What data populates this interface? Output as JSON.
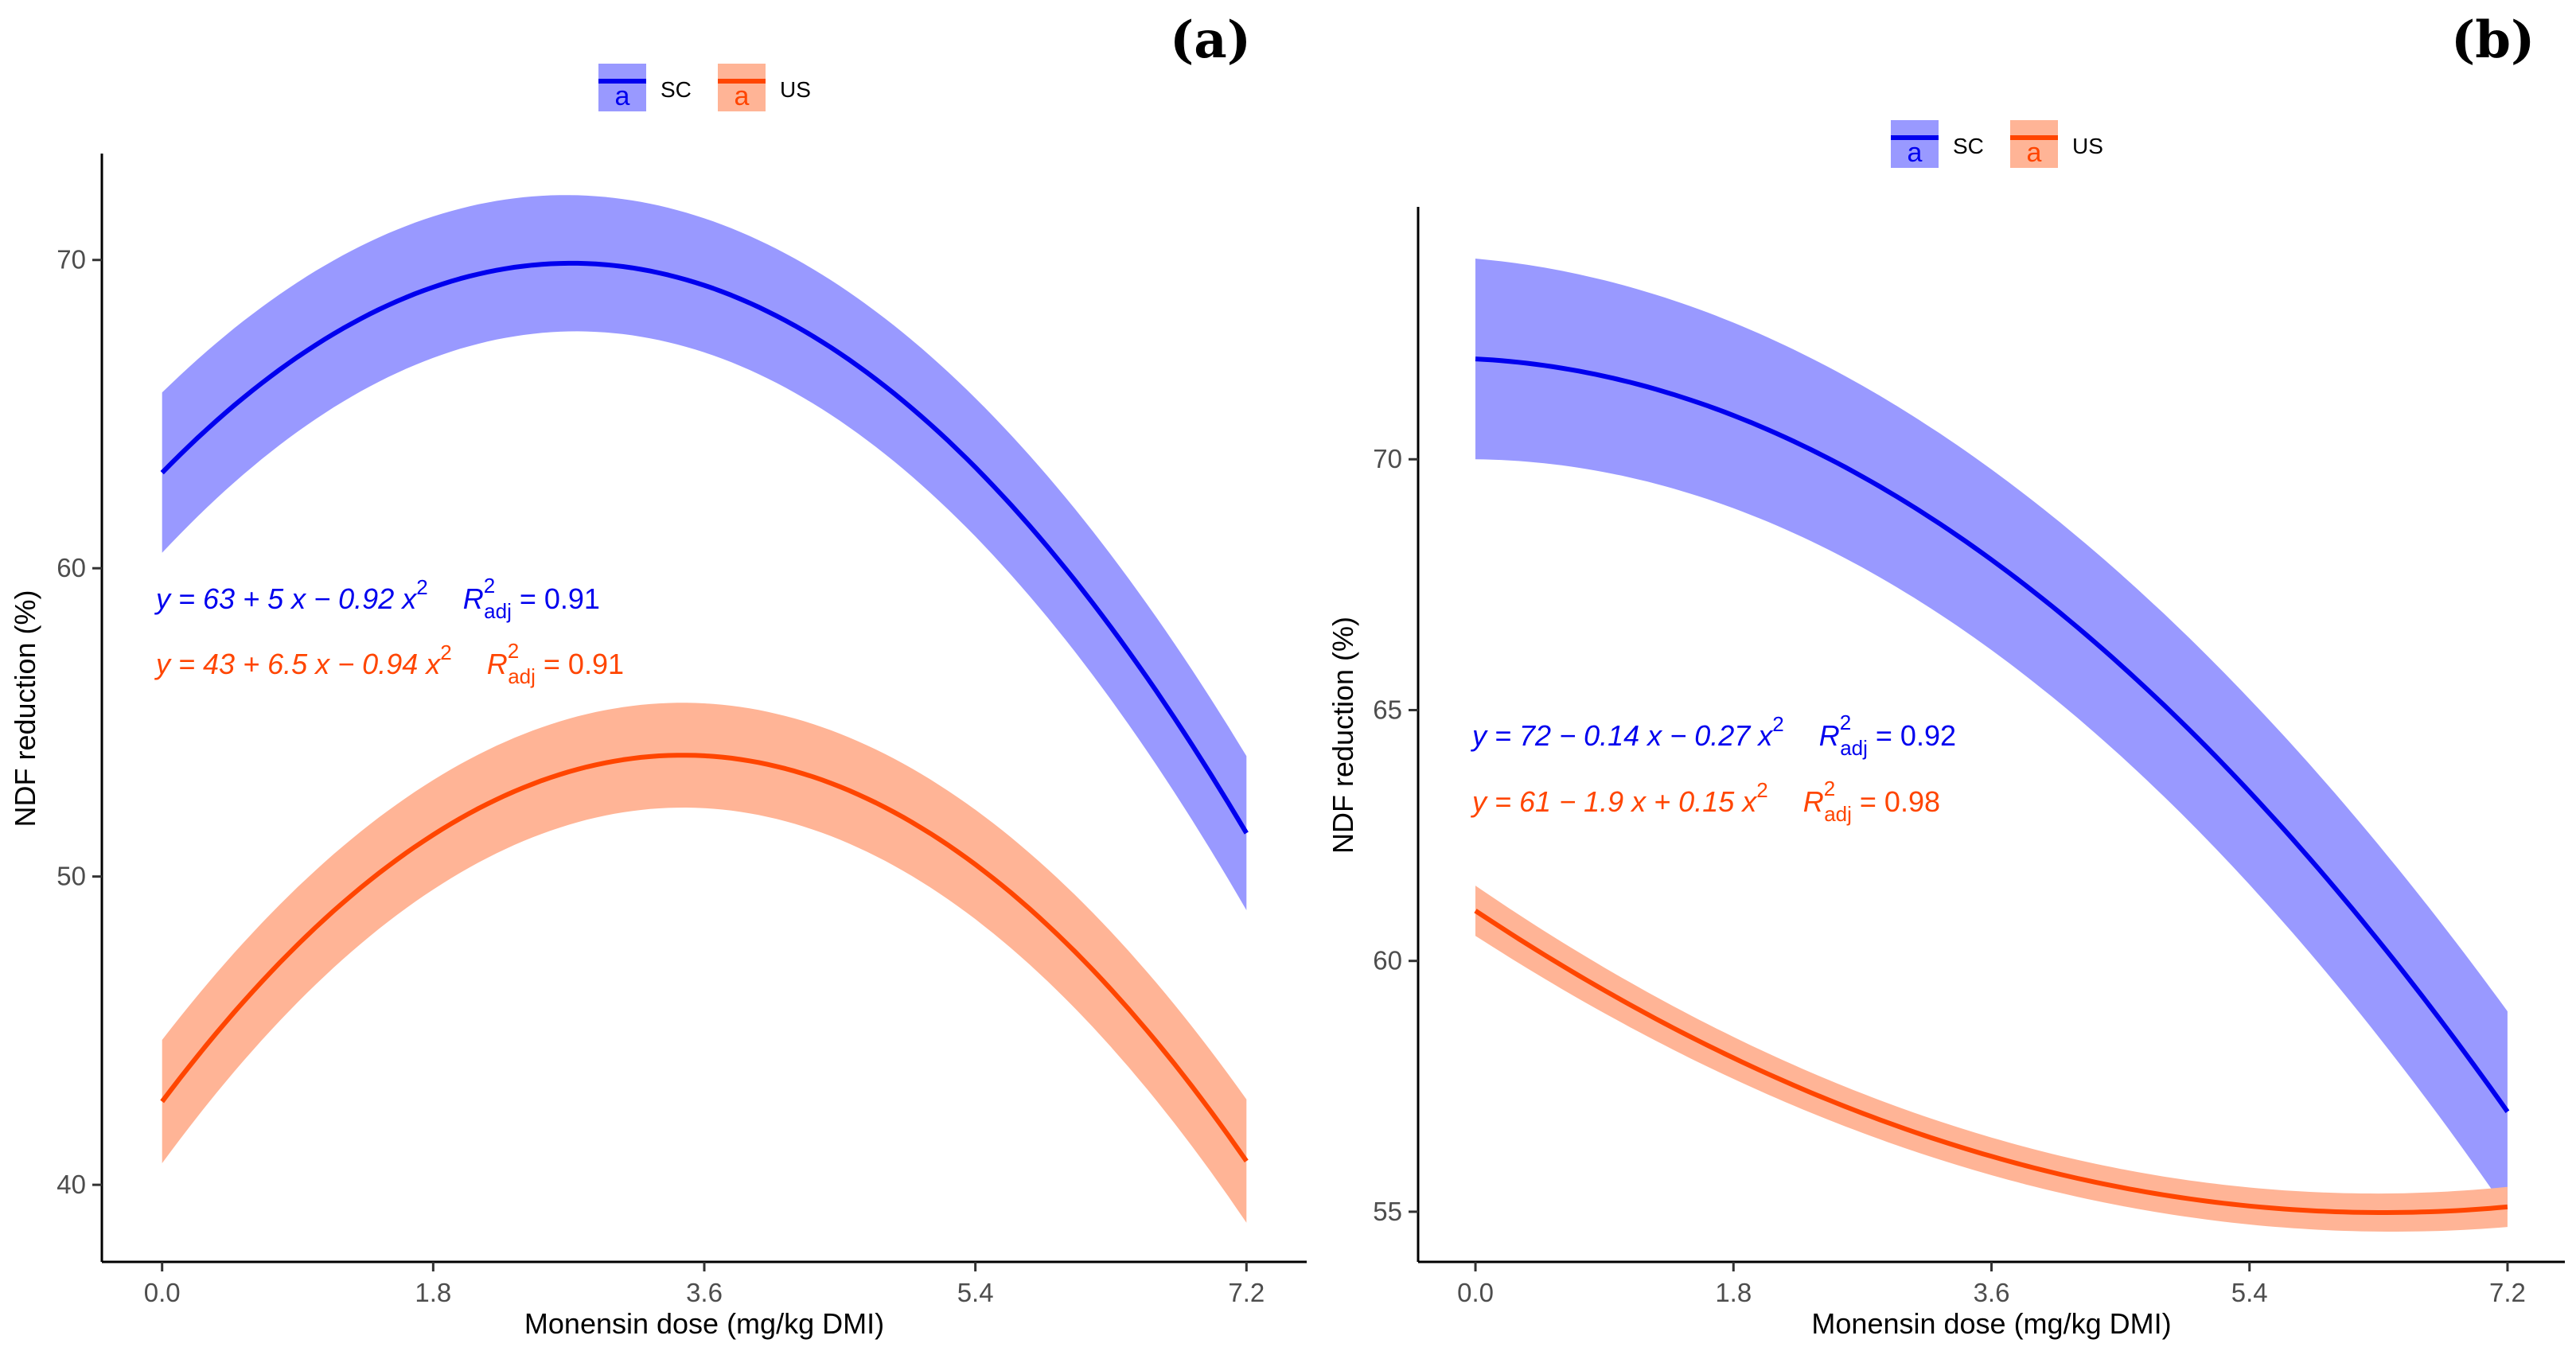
{
  "chart_data": [
    {
      "type": "line",
      "panel_label": "(a)",
      "xlabel": "Monensin dose (mg/kg DMI)",
      "ylabel": "NDF reduction (%)",
      "x_ticks": [
        0.0,
        1.8,
        3.6,
        5.4,
        7.2
      ],
      "x_tick_labels": [
        "0.0",
        "1.8",
        "3.6",
        "5.4",
        "7.2"
      ],
      "y_ticks": [
        40,
        50,
        60,
        70
      ],
      "y_tick_labels": [
        "40",
        "50",
        "60",
        "70"
      ],
      "xlim": [
        -0.4,
        7.6
      ],
      "ylim": [
        37.5,
        73.4
      ],
      "legend": {
        "placement": "top",
        "entries": [
          "SC",
          "US"
        ],
        "key_glyph": "a"
      },
      "series": [
        {
          "name": "SC",
          "line_color": "#0000ee",
          "band_color": "#9999ff",
          "coef": [
            63.1,
            5.0,
            -0.92
          ],
          "ci_halfwidth": [
            2.6,
            1.8,
            2.5
          ],
          "equation": {
            "prefix": "y = 63 + 5 x − 0.92 x",
            "sup": "2",
            "r_label": "R",
            "r_sup": "2",
            "r_sub": "adj",
            "r_value": " = 0.91"
          }
        },
        {
          "name": "US",
          "line_color": "#ff4500",
          "band_color": "#ffb496",
          "coef": [
            42.7,
            6.5,
            -0.94
          ],
          "ci_halfwidth": [
            2.0,
            1.4,
            2.0
          ],
          "equation": {
            "prefix": "y = 43 + 6.5 x − 0.94 x",
            "sup": "2",
            "r_label": "R",
            "r_sup": "2",
            "r_sub": "adj",
            "r_value": " = 0.91"
          }
        }
      ]
    },
    {
      "type": "line",
      "panel_label": "(b)",
      "xlabel": "Monensin dose (mg/kg DMI)",
      "ylabel": "NDF reduction (%)",
      "x_ticks": [
        0.0,
        1.8,
        3.6,
        5.4,
        7.2
      ],
      "x_tick_labels": [
        "0.0",
        "1.8",
        "3.6",
        "5.4",
        "7.2"
      ],
      "y_ticks": [
        55,
        60,
        65,
        70
      ],
      "y_tick_labels": [
        "55",
        "60",
        "65",
        "70"
      ],
      "xlim": [
        -0.4,
        7.6
      ],
      "ylim": [
        54.0,
        75.0
      ],
      "legend": {
        "placement": "top",
        "entries": [
          "SC",
          "US"
        ],
        "key_glyph": "a"
      },
      "series": [
        {
          "name": "SC",
          "line_color": "#0000ee",
          "band_color": "#9999ff",
          "coef": [
            72.0,
            -0.14,
            -0.27
          ],
          "ci_halfwidth": [
            2.0,
            1.6,
            2.0
          ],
          "equation": {
            "prefix": "y = 72 − 0.14 x − 0.27 x",
            "sup": "2",
            "r_label": "R",
            "r_sup": "2",
            "r_sub": "adj",
            "r_value": " = 0.92"
          }
        },
        {
          "name": "US",
          "line_color": "#ff4500",
          "band_color": "#ffb496",
          "coef": [
            61.0,
            -1.9,
            0.15
          ],
          "ci_halfwidth": [
            0.5,
            0.3,
            0.4
          ],
          "equation": {
            "prefix": "y = 61 − 1.9 x + 0.15 x",
            "sup": "2",
            "r_label": "R",
            "r_sup": "2",
            "r_sub": "adj",
            "r_value": " = 0.98"
          }
        }
      ]
    }
  ]
}
